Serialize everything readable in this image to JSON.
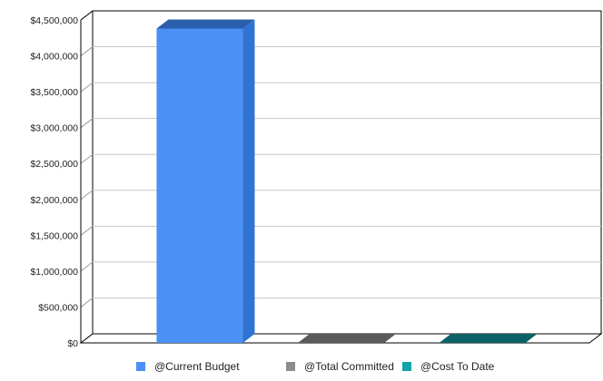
{
  "chart_data": {
    "type": "bar",
    "style": "3d",
    "categories": [
      "@Current Budget",
      "@Total Committed",
      "@Cost To Date"
    ],
    "values": [
      4380000,
      0,
      0
    ],
    "title": "",
    "xlabel": "",
    "ylabel": "",
    "ylim": [
      0,
      4500000
    ],
    "yticks": [
      "$0",
      "$500,000",
      "$1,000,000",
      "$1,500,000",
      "$2,000,000",
      "$2,500,000",
      "$3,000,000",
      "$3,500,000",
      "$4,000,000",
      "$4,500,000"
    ],
    "grid": true,
    "legend_position": "bottom",
    "colors": {
      "@Current Budget": {
        "front": "#4a90f5",
        "side": "#2f73d3",
        "top": "#2b5fae",
        "legend": "#4a90f5"
      },
      "@Total Committed": {
        "front": "#8c8c8c",
        "side": "#6b6b6b",
        "top": "#5a5a5a",
        "legend": "#8c8c8c"
      },
      "@Cost To Date": {
        "front": "#12a3a8",
        "side": "#0d7c80",
        "top": "#0b6165",
        "legend": "#12a3a8"
      }
    }
  }
}
